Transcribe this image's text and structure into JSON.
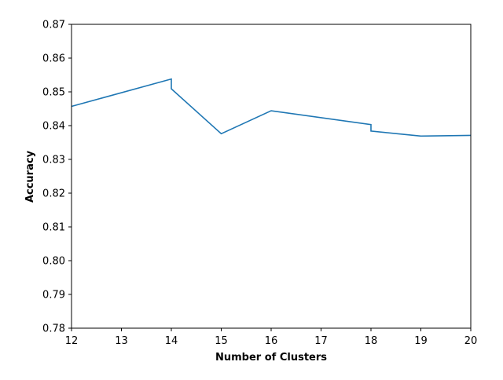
{
  "chart_data": {
    "type": "line",
    "title": "",
    "xlabel": "Number of Clusters",
    "ylabel": "Accuracy",
    "xlim": [
      12,
      20
    ],
    "ylim": [
      0.78,
      0.87
    ],
    "xticks": [
      "12",
      "13",
      "14",
      "15",
      "16",
      "17",
      "18",
      "19",
      "20"
    ],
    "yticks": [
      "0.78",
      "0.79",
      "0.80",
      "0.81",
      "0.82",
      "0.83",
      "0.84",
      "0.85",
      "0.86",
      "0.87"
    ],
    "grid": false,
    "series": [
      {
        "color": "#1f77b4",
        "x": [
          12,
          14,
          14,
          15,
          16,
          18,
          18,
          19,
          20
        ],
        "y": [
          0.8457,
          0.8538,
          0.8509,
          0.8376,
          0.8444,
          0.8403,
          0.8384,
          0.8369,
          0.8371
        ]
      }
    ]
  }
}
